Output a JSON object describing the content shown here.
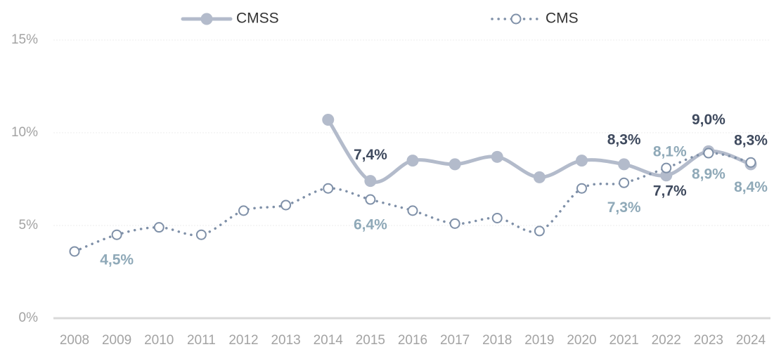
{
  "chart_data": {
    "type": "line",
    "categories": [
      "2008",
      "2009",
      "2010",
      "2011",
      "2012",
      "2013",
      "2014",
      "2015",
      "2016",
      "2017",
      "2018",
      "2019",
      "2020",
      "2021",
      "2022",
      "2023",
      "2024"
    ],
    "series": [
      {
        "name": "CMSS",
        "color": "#b3bbcb",
        "label_color": "#3f4a5e",
        "line_style": "solid",
        "values": [
          null,
          null,
          null,
          null,
          null,
          null,
          10.7,
          7.4,
          8.5,
          8.3,
          8.7,
          7.6,
          8.5,
          8.3,
          7.7,
          9.0,
          8.3
        ],
        "value_labels": [
          null,
          null,
          null,
          null,
          null,
          null,
          null,
          "7,4%",
          null,
          null,
          null,
          null,
          null,
          "8,3%",
          "7,7%",
          "9,0%",
          "8,3%"
        ]
      },
      {
        "name": "CMS",
        "color": "#7f90a8",
        "label_color": "#8fa9b8",
        "line_style": "dotted",
        "values": [
          3.6,
          4.5,
          4.9,
          4.5,
          5.8,
          6.1,
          7.0,
          6.4,
          5.8,
          5.1,
          5.4,
          4.7,
          7.0,
          7.3,
          8.1,
          8.9,
          8.4
        ],
        "value_labels": [
          null,
          "4,5%",
          null,
          null,
          null,
          null,
          null,
          "6,4%",
          null,
          null,
          null,
          null,
          null,
          "7,3%",
          "8,1%",
          "8,9%",
          "8,4%"
        ]
      }
    ],
    "ylim": [
      0,
      15
    ],
    "yticks": [
      {
        "value": 0,
        "label": "0%"
      },
      {
        "value": 5,
        "label": "5%"
      },
      {
        "value": 10,
        "label": "10%"
      },
      {
        "value": 15,
        "label": "15%"
      }
    ],
    "grid": true,
    "legend": "top"
  }
}
